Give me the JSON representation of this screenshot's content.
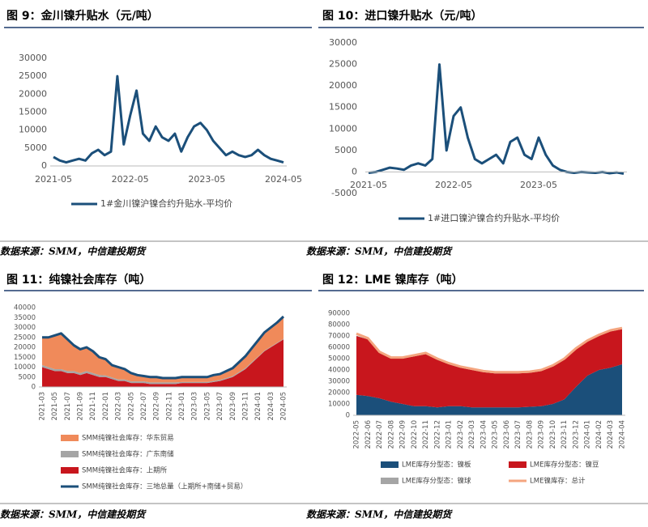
{
  "chart_data": [
    {
      "type": "line",
      "title": "图 9：金川镍升贴水（元/吨）",
      "source": "数据来源：SMM，中信建投期货",
      "x": [
        "2021-05",
        "2021-06",
        "2021-07",
        "2021-08",
        "2021-09",
        "2021-10",
        "2021-11",
        "2021-12",
        "2022-01",
        "2022-02",
        "2022-03",
        "2022-04",
        "2022-05",
        "2022-06",
        "2022-07",
        "2022-08",
        "2022-09",
        "2022-10",
        "2022-11",
        "2022-12",
        "2023-01",
        "2023-02",
        "2023-03",
        "2023-04",
        "2023-05",
        "2023-06",
        "2023-07",
        "2023-08",
        "2023-09",
        "2023-10",
        "2023-11",
        "2023-12",
        "2024-01",
        "2024-02",
        "2024-03",
        "2024-04",
        "2024-05"
      ],
      "xticks": [
        "2021-05",
        "2022-05",
        "2023-05",
        "2024-05"
      ],
      "series": [
        {
          "name": "1#金川镍沪镍合约升贴水-平均价",
          "color": "#1b4f7a",
          "values": [
            2500,
            1500,
            1000,
            1500,
            2000,
            1500,
            3500,
            4500,
            3000,
            4000,
            25000,
            6000,
            14000,
            21000,
            9000,
            7000,
            11000,
            8000,
            7000,
            9000,
            4000,
            8000,
            11000,
            12000,
            10000,
            7000,
            5000,
            3000,
            4000,
            3000,
            2500,
            3000,
            4500,
            3000,
            2000,
            1500,
            1000
          ]
        }
      ],
      "ylim": [
        0,
        30000
      ],
      "yticks": [
        0,
        5000,
        10000,
        15000,
        20000,
        25000,
        30000
      ]
    },
    {
      "type": "line",
      "title": "图 10：进口镍升贴水（元/吨）",
      "source": "数据来源：SMM，中信建投期货",
      "x": [
        "2021-05",
        "2021-06",
        "2021-07",
        "2021-08",
        "2021-09",
        "2021-10",
        "2021-11",
        "2021-12",
        "2022-01",
        "2022-02",
        "2022-03",
        "2022-04",
        "2022-05",
        "2022-06",
        "2022-07",
        "2022-08",
        "2022-09",
        "2022-10",
        "2022-11",
        "2022-12",
        "2023-01",
        "2023-02",
        "2023-03",
        "2023-04",
        "2023-05",
        "2023-06",
        "2023-07",
        "2023-08",
        "2023-09",
        "2023-10",
        "2023-11",
        "2023-12",
        "2024-01",
        "2024-02",
        "2024-03",
        "2024-04",
        "2024-05"
      ],
      "xticks": [
        "2021-05",
        "2022-05",
        "2023-05"
      ],
      "series": [
        {
          "name": "1#进口镍沪镍合约升贴水-平均价",
          "color": "#1b4f7a",
          "values": [
            -200,
            0,
            500,
            1000,
            800,
            500,
            1500,
            2000,
            1500,
            3000,
            25000,
            5000,
            13000,
            15000,
            8000,
            3000,
            2000,
            3000,
            4000,
            2000,
            7000,
            8000,
            4000,
            3000,
            8000,
            4000,
            1500,
            500,
            0,
            -200,
            0,
            -100,
            -200,
            0,
            -300,
            -100,
            -400
          ]
        }
      ],
      "ylim": [
        -5000,
        30000
      ],
      "yticks": [
        -5000,
        0,
        5000,
        10000,
        15000,
        20000,
        25000,
        30000
      ]
    },
    {
      "type": "area",
      "stacked": true,
      "title": "图 11：纯镍社会库存（吨）",
      "source": "数据来源：SMM，中信建投期货",
      "x": [
        "2021-03",
        "2021-04",
        "2021-05",
        "2021-06",
        "2021-07",
        "2021-08",
        "2021-09",
        "2021-10",
        "2021-11",
        "2021-12",
        "2022-01",
        "2022-02",
        "2022-03",
        "2022-04",
        "2022-05",
        "2022-06",
        "2022-07",
        "2022-08",
        "2022-09",
        "2022-10",
        "2022-11",
        "2022-12",
        "2023-01",
        "2023-02",
        "2023-03",
        "2023-04",
        "2023-05",
        "2023-06",
        "2023-07",
        "2023-08",
        "2023-09",
        "2023-10",
        "2023-11",
        "2023-12",
        "2024-01",
        "2024-02",
        "2024-03",
        "2024-04",
        "2024-05"
      ],
      "xticks": [
        "2021-03",
        "2021-05",
        "2021-07",
        "2021-09",
        "2021-11",
        "2022-01",
        "2022-03",
        "2022-05",
        "2022-07",
        "2022-09",
        "2022-11",
        "2023-01",
        "2023-03",
        "2023-05",
        "2023-07",
        "2023-09",
        "2023-11",
        "2024-01",
        "2024-03",
        "2024-05"
      ],
      "series": [
        {
          "name": "SMM纯镍社会库存：上期所",
          "color": "#c8161d",
          "values": [
            10000,
            9000,
            8000,
            8000,
            7000,
            7000,
            6000,
            7000,
            6000,
            5000,
            5000,
            4000,
            3000,
            3000,
            2000,
            2000,
            2000,
            1500,
            1500,
            1500,
            1500,
            1500,
            2000,
            2000,
            2000,
            2000,
            2000,
            2500,
            3000,
            4000,
            5000,
            7000,
            9000,
            12000,
            15000,
            18000,
            20000,
            22000,
            24000
          ]
        },
        {
          "name": "SMM纯镍社会库存：广东南储",
          "color": "#a5a5a5",
          "values": [
            1000,
            1000,
            1000,
            1000,
            1000,
            1000,
            1000,
            1000,
            1000,
            1000,
            800,
            800,
            800,
            800,
            800,
            800,
            800,
            800,
            800,
            800,
            800,
            800,
            500,
            500,
            500,
            500,
            500,
            500,
            500,
            500,
            500,
            500,
            500,
            500,
            300,
            300,
            300,
            300,
            300
          ]
        },
        {
          "name": "SMM纯镍社会库存：华东贸易",
          "color": "#f08a5a",
          "values": [
            14000,
            15000,
            17000,
            18000,
            16000,
            13000,
            12000,
            12000,
            11000,
            9000,
            8000,
            6000,
            6000,
            5000,
            4000,
            3000,
            3000,
            3000,
            3000,
            2500,
            2500,
            2500,
            2500,
            2500,
            2500,
            2500,
            2500,
            3000,
            3000,
            3500,
            4000,
            5000,
            6000,
            7000,
            8000,
            9000,
            9500,
            10000,
            11000
          ]
        },
        {
          "name": "SMM纯镍社会库存：三地总量（上期所+南储+贸易）",
          "color": "#1b4f7a",
          "type": "line",
          "values": [
            25000,
            25000,
            26000,
            27000,
            24000,
            21000,
            19000,
            20000,
            18000,
            15000,
            14000,
            11000,
            10000,
            9000,
            7000,
            6000,
            5500,
            5000,
            5000,
            4500,
            4500,
            4500,
            5000,
            5000,
            5000,
            5000,
            5000,
            6000,
            6500,
            8000,
            9500,
            12500,
            15500,
            19500,
            23500,
            27500,
            30000,
            32500,
            35500
          ]
        }
      ],
      "ylim": [
        0,
        40000
      ],
      "yticks": [
        0,
        5000,
        10000,
        15000,
        20000,
        25000,
        30000,
        35000,
        40000
      ]
    },
    {
      "type": "area",
      "stacked": true,
      "title": "图 12：LME 镍库存（吨）",
      "source": "数据来源：SMM，中信建投期货",
      "x": [
        "2022-05",
        "2022-06",
        "2022-07",
        "2022-08",
        "2022-09",
        "2022-10",
        "2022-11",
        "2022-12",
        "2023-01",
        "2023-02",
        "2023-03",
        "2023-04",
        "2023-05",
        "2023-06",
        "2023-07",
        "2023-08",
        "2023-09",
        "2023-10",
        "2023-11",
        "2023-12",
        "2024-01",
        "2024-02",
        "2024-03",
        "2024-04"
      ],
      "xticks": [
        "2022-05",
        "2022-06",
        "2022-07",
        "2022-08",
        "2022-09",
        "2022-10",
        "2022-11",
        "2022-12",
        "2023-01",
        "2023-02",
        "2023-03",
        "2023-04",
        "2023-05",
        "2023-06",
        "2023-07",
        "2023-08",
        "2023-09",
        "2023-10",
        "2023-11",
        "2023-12",
        "2024-01",
        "2024-02",
        "2024-03",
        "2024-04"
      ],
      "series": [
        {
          "name": "LME库存分型态：镍板",
          "color": "#1b4f7a",
          "values": [
            18000,
            17000,
            15000,
            12000,
            10000,
            8000,
            8000,
            7000,
            8000,
            8000,
            7000,
            7000,
            7000,
            7000,
            7000,
            7500,
            8000,
            10000,
            14000,
            25000,
            35000,
            40000,
            42000,
            45000
          ]
        },
        {
          "name": "LME库存分型态：镍豆",
          "color": "#c8161d",
          "values": [
            52000,
            50000,
            40000,
            38000,
            40000,
            44000,
            46000,
            42000,
            37000,
            34000,
            33000,
            31000,
            30000,
            30000,
            30000,
            30000,
            31000,
            33000,
            35000,
            33000,
            30000,
            30000,
            32000,
            31000
          ]
        },
        {
          "name": "LME库存分型态：镍球",
          "color": "#a5a5a5",
          "values": [
            300,
            300,
            300,
            300,
            300,
            300,
            300,
            300,
            300,
            300,
            300,
            300,
            300,
            300,
            300,
            300,
            300,
            300,
            300,
            300,
            300,
            300,
            300,
            300
          ]
        },
        {
          "name": "LME镍库存：总计",
          "color": "#f4a57f",
          "type": "line",
          "values": [
            72000,
            68000,
            56000,
            51000,
            51000,
            53000,
            55000,
            50000,
            46000,
            43000,
            41000,
            39000,
            38000,
            38000,
            38000,
            38500,
            40000,
            44000,
            50000,
            59000,
            66000,
            71000,
            75000,
            77000
          ]
        }
      ],
      "ylim": [
        0,
        90000
      ],
      "yticks": [
        0,
        10000,
        20000,
        30000,
        40000,
        50000,
        60000,
        70000,
        80000,
        90000
      ]
    }
  ]
}
